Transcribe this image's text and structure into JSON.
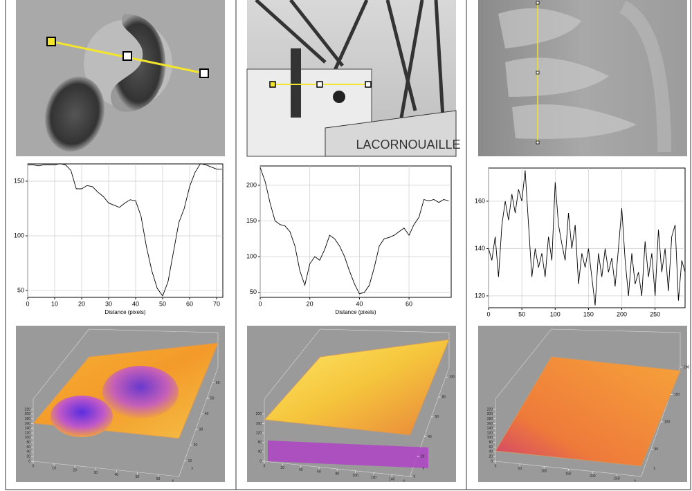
{
  "chart_data": [
    {
      "type": "line",
      "xlabel": "Distance (pixels)",
      "xlim": [
        0,
        72.3
      ],
      "ylim": [
        43.7,
        165.8
      ],
      "xticks": [
        0,
        10,
        20,
        30,
        40,
        50,
        60,
        70
      ],
      "yticks": [
        50,
        100,
        150
      ],
      "x": [
        0,
        2,
        4,
        6,
        8,
        10,
        12,
        14,
        16,
        18,
        20,
        22,
        24,
        26,
        28,
        30,
        32,
        34,
        36,
        38,
        40,
        42,
        44,
        46,
        48,
        50,
        52,
        54,
        56,
        58,
        60,
        62,
        64,
        66,
        68,
        70,
        72
      ],
      "series": [
        {
          "color": "#000000",
          "values": [
            165,
            165,
            164,
            165,
            165,
            165,
            166,
            165,
            160,
            143,
            143,
            146,
            145,
            140,
            136,
            130,
            128,
            126,
            130,
            133,
            132,
            118,
            90,
            68,
            52,
            45,
            58,
            85,
            112,
            125,
            145,
            158,
            166,
            165,
            163,
            161,
            161
          ]
        }
      ]
    },
    {
      "type": "line",
      "xlabel": "Distance (pixels)",
      "xlim": [
        0,
        77
      ],
      "ylim": [
        43,
        227
      ],
      "xticks": [
        0,
        20,
        40,
        60
      ],
      "yticks": [
        50,
        100,
        150,
        200
      ],
      "x": [
        0,
        2,
        4,
        6,
        8,
        10,
        12,
        14,
        16,
        18,
        20,
        22,
        24,
        26,
        28,
        30,
        32,
        34,
        36,
        38,
        40,
        42,
        44,
        46,
        48,
        50,
        52,
        54,
        56,
        58,
        60,
        62,
        64,
        66,
        68,
        70,
        72,
        74,
        76
      ],
      "series": [
        {
          "color": "#000000",
          "values": [
            225,
            205,
            175,
            150,
            145,
            143,
            135,
            115,
            80,
            60,
            90,
            100,
            95,
            110,
            130,
            125,
            115,
            100,
            80,
            62,
            48,
            50,
            60,
            85,
            115,
            125,
            127,
            130,
            135,
            140,
            130,
            145,
            155,
            180,
            178,
            180,
            176,
            180,
            178
          ]
        }
      ]
    },
    {
      "type": "line",
      "xlim": [
        0,
        295
      ],
      "ylim": [
        115,
        174
      ],
      "xticks": [
        0,
        50,
        100,
        150,
        200,
        250
      ],
      "yticks": [
        120,
        140,
        160
      ],
      "x": [
        0,
        5,
        10,
        15,
        20,
        25,
        30,
        35,
        40,
        45,
        50,
        55,
        60,
        65,
        70,
        75,
        80,
        85,
        90,
        95,
        100,
        105,
        110,
        115,
        120,
        125,
        130,
        135,
        140,
        145,
        150,
        155,
        160,
        165,
        170,
        175,
        180,
        185,
        190,
        195,
        200,
        205,
        210,
        215,
        220,
        225,
        230,
        235,
        240,
        245,
        250,
        255,
        260,
        265,
        270,
        275,
        280,
        285,
        290,
        295
      ],
      "series": [
        {
          "color": "#000000",
          "values": [
            140,
            135,
            145,
            128,
            150,
            160,
            152,
            163,
            155,
            165,
            160,
            173,
            150,
            128,
            140,
            132,
            138,
            128,
            145,
            135,
            168,
            150,
            142,
            135,
            155,
            140,
            150,
            125,
            138,
            132,
            140,
            128,
            116,
            138,
            128,
            140,
            130,
            136,
            124,
            140,
            157,
            135,
            120,
            138,
            125,
            130,
            120,
            143,
            128,
            138,
            120,
            148,
            130,
            140,
            122,
            145,
            150,
            118,
            135,
            130
          ]
        }
      ]
    },
    {
      "type": "surface",
      "xlabel": "x",
      "ylabel": "y",
      "xlim": [
        0,
        70
      ],
      "ylim": [
        0,
        70
      ],
      "zlim": [
        0,
        220
      ],
      "xticks": [
        0,
        10,
        20,
        30,
        40,
        50,
        60
      ],
      "yticks": [
        10,
        20,
        30,
        40,
        50,
        60
      ],
      "zticks": [
        0,
        20,
        40,
        60,
        80,
        100,
        120,
        140,
        160,
        180,
        200,
        220
      ]
    },
    {
      "type": "surface",
      "xlabel": "x",
      "ylabel": "y",
      "xlim": [
        0,
        160
      ],
      "ylim": [
        0,
        110
      ],
      "zlim": [
        0,
        220
      ],
      "xticks": [
        0,
        20,
        40,
        60,
        80,
        100,
        120,
        140
      ],
      "yticks": [
        0,
        20,
        40,
        60,
        80,
        100
      ],
      "zticks": [
        0,
        40,
        80,
        120,
        160,
        200
      ]
    },
    {
      "type": "surface",
      "xlabel": "x",
      "ylabel": "y",
      "xlim": [
        0,
        300
      ],
      "ylim": [
        0,
        200
      ],
      "zlim": [
        0,
        220
      ],
      "xticks": [
        0,
        50,
        100,
        150,
        200,
        250
      ],
      "yticks": [
        50,
        100,
        150,
        200
      ],
      "zticks": [
        0,
        20,
        40,
        60,
        80,
        100,
        120,
        140,
        160,
        180,
        200,
        220
      ]
    }
  ]
}
